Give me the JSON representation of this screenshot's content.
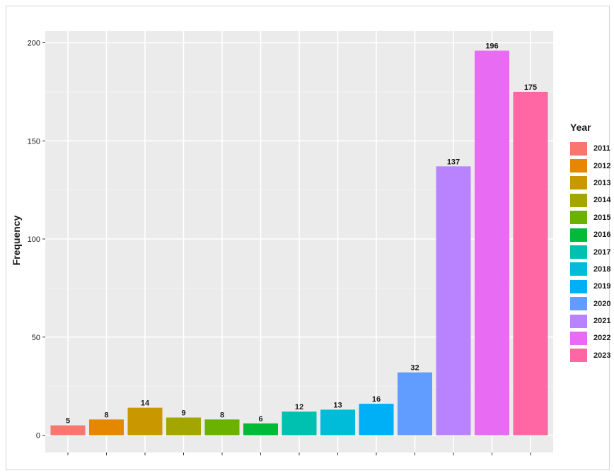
{
  "chart_data": {
    "type": "bar",
    "title": "",
    "xlabel": "",
    "ylabel": "Frequency",
    "ylim": [
      0,
      200
    ],
    "yticks": [
      0,
      50,
      100,
      150,
      200
    ],
    "grid": true,
    "legend_position": "right",
    "legend_title": "Year",
    "categories": [
      "2011",
      "2012",
      "2013",
      "2014",
      "2015",
      "2016",
      "2017",
      "2018",
      "2019",
      "2020",
      "2021",
      "2022",
      "2023"
    ],
    "values": [
      5,
      8,
      14,
      9,
      8,
      6,
      12,
      13,
      16,
      32,
      137,
      196,
      175
    ],
    "colors": [
      "#F8766D",
      "#E58700",
      "#C99800",
      "#A3A500",
      "#6BB100",
      "#00BA38",
      "#00C0AF",
      "#00BCD8",
      "#00B0F6",
      "#619CFF",
      "#B983FF",
      "#E76BF3",
      "#FF67A4"
    ],
    "data_labels": [
      "5",
      "8",
      "14",
      "9",
      "8",
      "6",
      "12",
      "13",
      "16",
      "32",
      "137",
      "196",
      "175"
    ]
  }
}
